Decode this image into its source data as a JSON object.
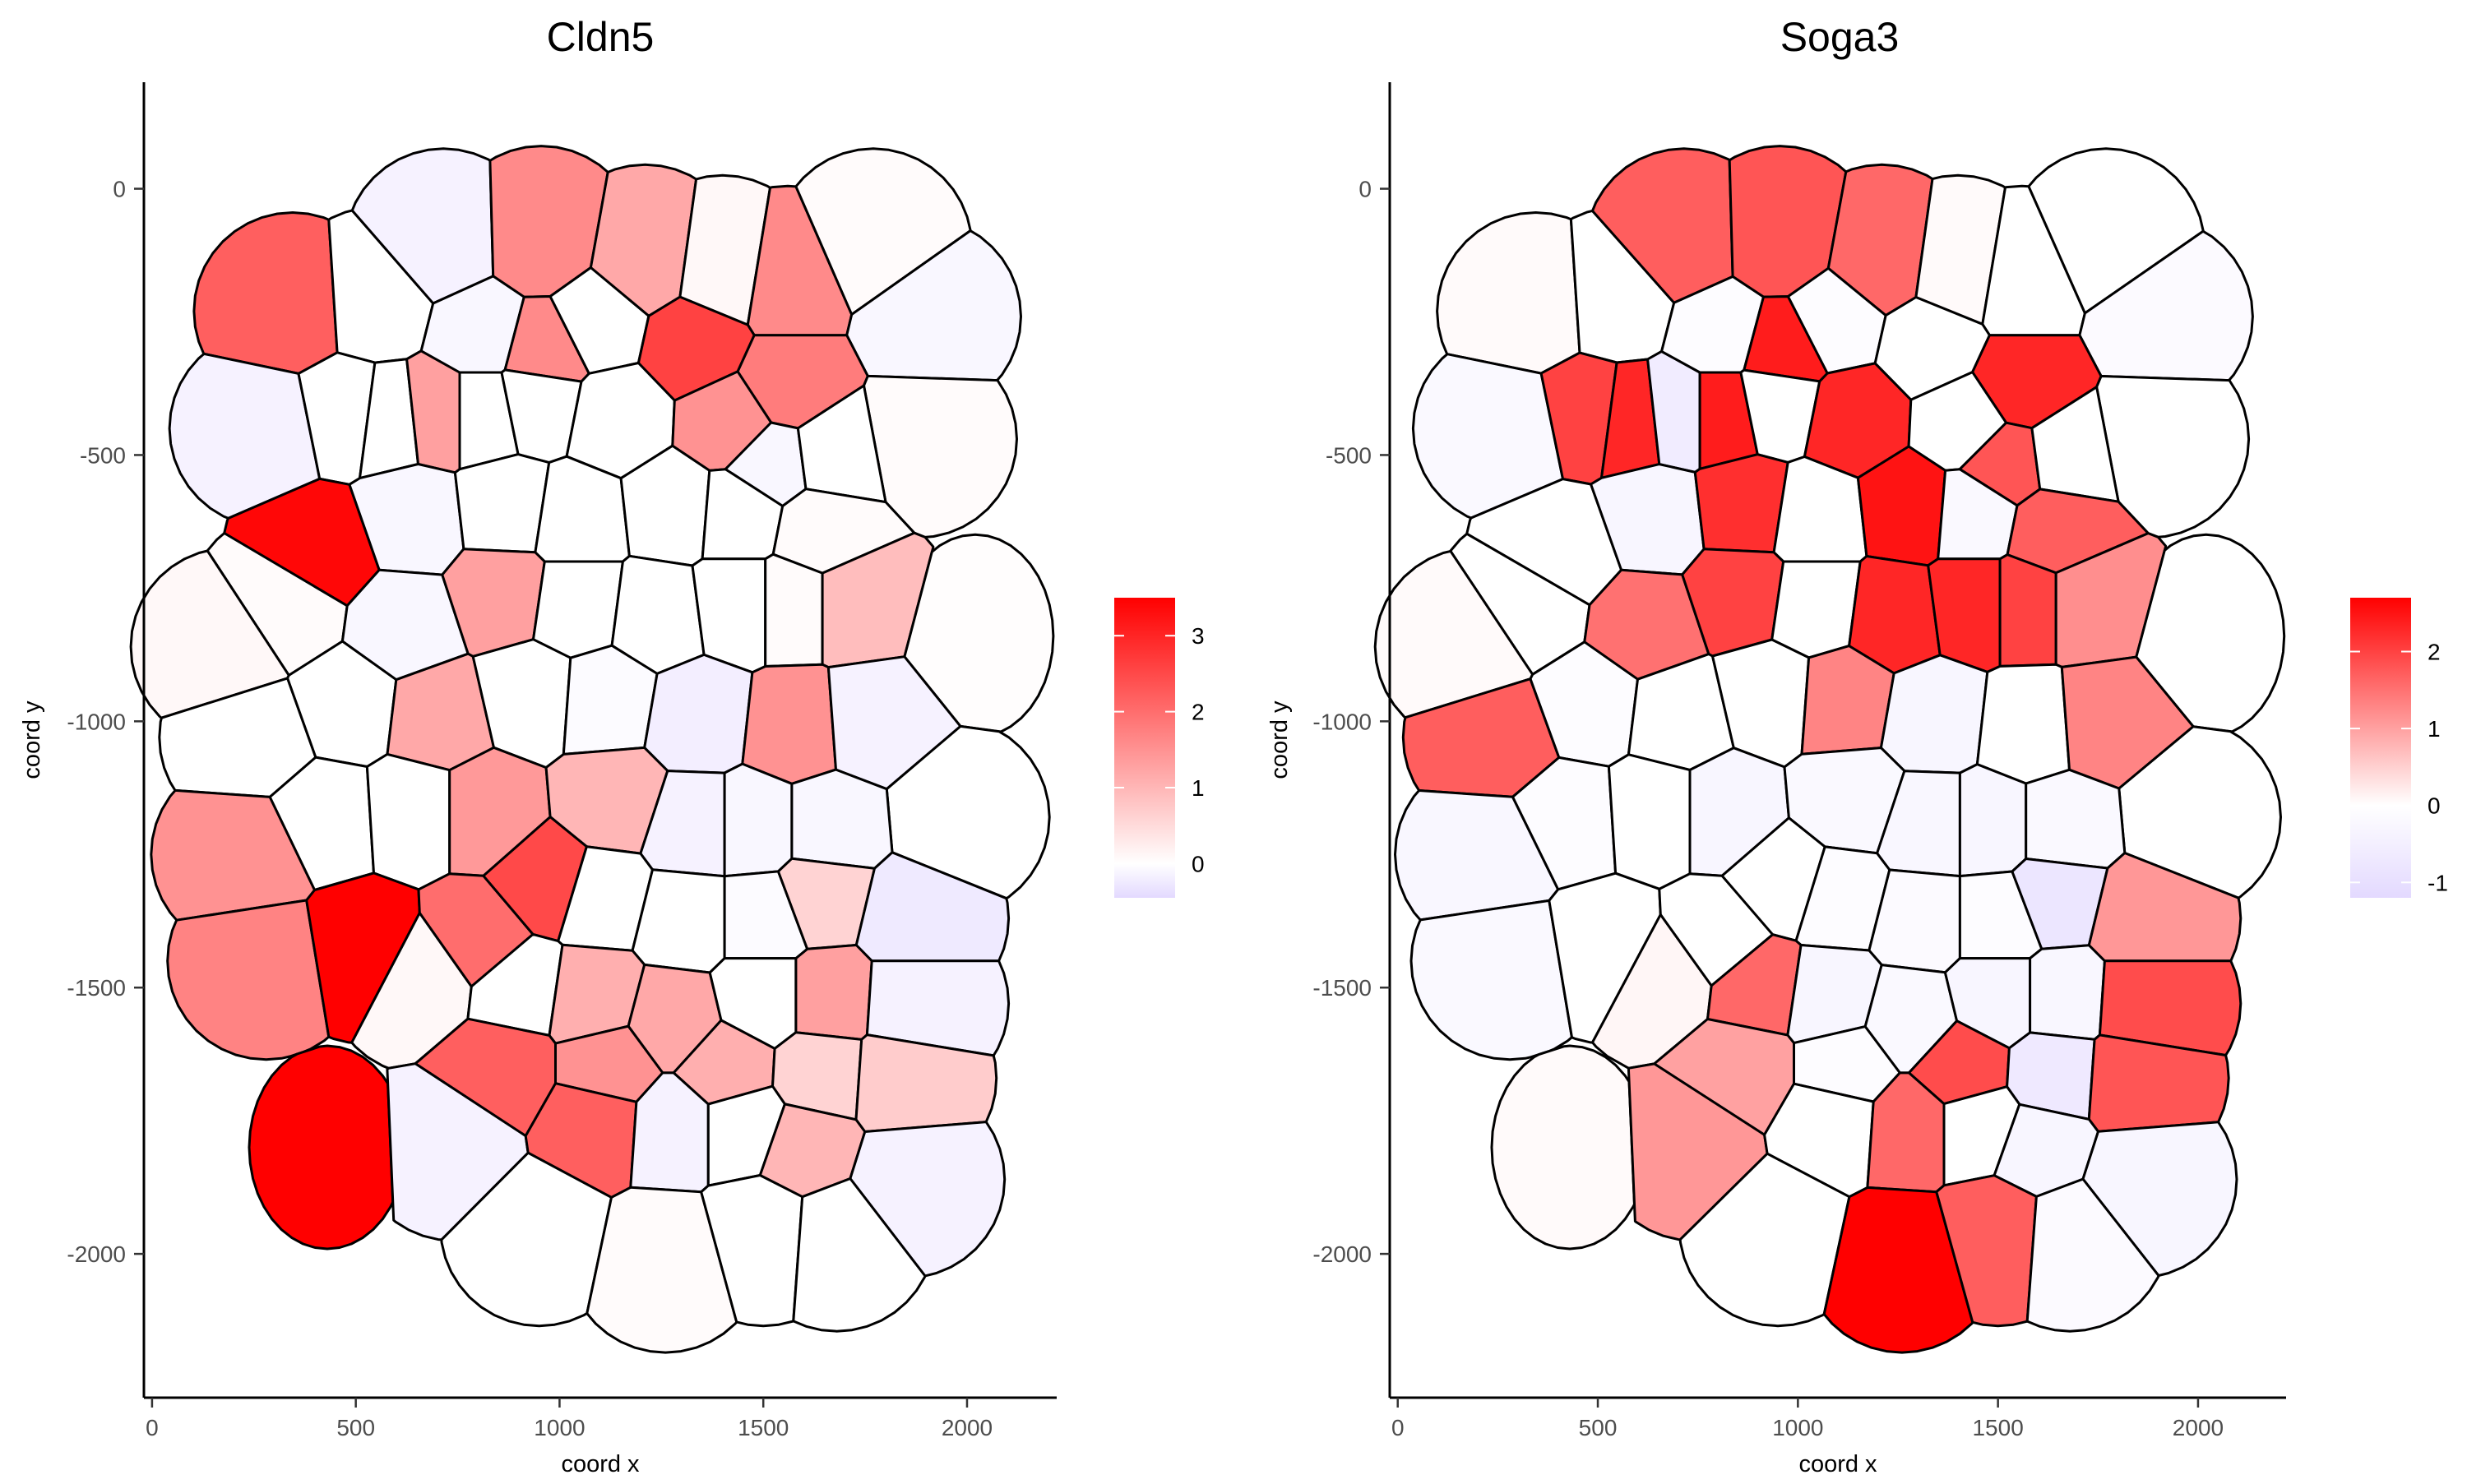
{
  "chart_data": [
    {
      "type": "heatmap",
      "subtype": "spatial-cell-polygons",
      "title": "Cldn5",
      "xlabel": "coord x",
      "ylabel": "coord y",
      "xlim": [
        -20,
        2220
      ],
      "ylim": [
        -2270,
        200
      ],
      "x_ticks": [
        0,
        500,
        1000,
        1500,
        2000
      ],
      "y_ticks": [
        0,
        -500,
        -1000,
        -1500,
        -2000
      ],
      "grid": false,
      "legend": {
        "position": "right",
        "scale": [
          -0.45,
          3.5
        ],
        "ticks": [
          0,
          1,
          2,
          3
        ],
        "low_color": "#e3d9ff",
        "mid_color": "#ffffff",
        "high_color": "#ff0000"
      },
      "cells": [
        {
          "x": 345,
          "y": -230,
          "value": 2.2
        },
        {
          "x": 550,
          "y": -220,
          "value": 0
        },
        {
          "x": 715,
          "y": -110,
          "value": -0.15
        },
        {
          "x": 955,
          "y": -105,
          "value": 1.6
        },
        {
          "x": 1210,
          "y": -140,
          "value": 1.2
        },
        {
          "x": 1400,
          "y": -160,
          "value": 0.1
        },
        {
          "x": 1560,
          "y": -180,
          "value": 1.6
        },
        {
          "x": 1770,
          "y": -110,
          "value": 0.05
        },
        {
          "x": 1890,
          "y": -240,
          "value": -0.1
        },
        {
          "x": 285,
          "y": -450,
          "value": -0.15
        },
        {
          "x": 480,
          "y": -420,
          "value": 0
        },
        {
          "x": 580,
          "y": -430,
          "value": 0
        },
        {
          "x": 700,
          "y": -420,
          "value": 1.3
        },
        {
          "x": 810,
          "y": -270,
          "value": -0.1
        },
        {
          "x": 960,
          "y": -300,
          "value": 1.6
        },
        {
          "x": 1090,
          "y": -250,
          "value": 0
        },
        {
          "x": 1330,
          "y": -290,
          "value": 2.6
        },
        {
          "x": 1560,
          "y": -370,
          "value": 1.8
        },
        {
          "x": 1880,
          "y": -470,
          "value": 0.05
        },
        {
          "x": 810,
          "y": -420,
          "value": 0
        },
        {
          "x": 940,
          "y": -400,
          "value": 0
        },
        {
          "x": 1140,
          "y": -430,
          "value": 0
        },
        {
          "x": 1420,
          "y": -440,
          "value": 1.5
        },
        {
          "x": 1520,
          "y": -515,
          "value": -0.1
        },
        {
          "x": 1670,
          "y": -500,
          "value": 0
        },
        {
          "x": 415,
          "y": -680,
          "value": 3.4
        },
        {
          "x": 640,
          "y": -620,
          "value": -0.1
        },
        {
          "x": 870,
          "y": -600,
          "value": 0
        },
        {
          "x": 1040,
          "y": -620,
          "value": 0
        },
        {
          "x": 1280,
          "y": -600,
          "value": 0
        },
        {
          "x": 1440,
          "y": -610,
          "value": 0
        },
        {
          "x": 1640,
          "y": -640,
          "value": 0.05
        },
        {
          "x": 330,
          "y": -790,
          "value": 0.05
        },
        {
          "x": 190,
          "y": -860,
          "value": 0.1
        },
        {
          "x": 620,
          "y": -820,
          "value": -0.1
        },
        {
          "x": 860,
          "y": -760,
          "value": 1.3
        },
        {
          "x": 1040,
          "y": -780,
          "value": 0
        },
        {
          "x": 1240,
          "y": -800,
          "value": 0
        },
        {
          "x": 1440,
          "y": -780,
          "value": 0
        },
        {
          "x": 1570,
          "y": -780,
          "value": 0.05
        },
        {
          "x": 1720,
          "y": -780,
          "value": 0.9
        },
        {
          "x": 2020,
          "y": -840,
          "value": 0.03
        },
        {
          "x": 260,
          "y": -1030,
          "value": 0
        },
        {
          "x": 480,
          "y": -970,
          "value": 0
        },
        {
          "x": 700,
          "y": -990,
          "value": 1.2
        },
        {
          "x": 930,
          "y": -950,
          "value": 0
        },
        {
          "x": 1110,
          "y": -960,
          "value": -0.05
        },
        {
          "x": 1340,
          "y": -990,
          "value": -0.2
        },
        {
          "x": 1580,
          "y": -1010,
          "value": 1.5
        },
        {
          "x": 1760,
          "y": -1000,
          "value": -0.15
        },
        {
          "x": 1960,
          "y": -1180,
          "value": 0
        },
        {
          "x": 240,
          "y": -1250,
          "value": 1.5
        },
        {
          "x": 430,
          "y": -1180,
          "value": 0
        },
        {
          "x": 640,
          "y": -1170,
          "value": 0
        },
        {
          "x": 820,
          "y": -1170,
          "value": 1.4
        },
        {
          "x": 1130,
          "y": -1150,
          "value": 1.0
        },
        {
          "x": 1330,
          "y": -1200,
          "value": -0.15
        },
        {
          "x": 1480,
          "y": -1200,
          "value": -0.1
        },
        {
          "x": 1660,
          "y": -1200,
          "value": -0.1
        },
        {
          "x": 280,
          "y": -1450,
          "value": 1.7
        },
        {
          "x": 520,
          "y": -1420,
          "value": 3.5
        },
        {
          "x": 670,
          "y": -1480,
          "value": 0.1
        },
        {
          "x": 800,
          "y": -1410,
          "value": 2.0
        },
        {
          "x": 970,
          "y": -1300,
          "value": 2.5
        },
        {
          "x": 1100,
          "y": -1330,
          "value": 0
        },
        {
          "x": 1310,
          "y": -1370,
          "value": 0
        },
        {
          "x": 1500,
          "y": -1370,
          "value": -0.05
        },
        {
          "x": 1640,
          "y": -1330,
          "value": 0.6
        },
        {
          "x": 1860,
          "y": -1370,
          "value": -0.25
        },
        {
          "x": 900,
          "y": -1500,
          "value": 0
        },
        {
          "x": 1080,
          "y": -1520,
          "value": 1.1
        },
        {
          "x": 1280,
          "y": -1560,
          "value": 1.2
        },
        {
          "x": 1500,
          "y": -1520,
          "value": 0
        },
        {
          "x": 1660,
          "y": -1520,
          "value": 1.3
        },
        {
          "x": 1860,
          "y": -1530,
          "value": -0.15
        },
        {
          "x": 430,
          "y": -1800,
          "value": 3.5
        },
        {
          "x": 860,
          "y": -1650,
          "value": 2.2
        },
        {
          "x": 1120,
          "y": -1650,
          "value": 1.5
        },
        {
          "x": 1410,
          "y": -1650,
          "value": 1.1
        },
        {
          "x": 1640,
          "y": -1660,
          "value": 0.6
        },
        {
          "x": 1830,
          "y": -1670,
          "value": 0.7
        },
        {
          "x": 740,
          "y": -1790,
          "value": -0.15
        },
        {
          "x": 1090,
          "y": -1750,
          "value": 2.2
        },
        {
          "x": 1280,
          "y": -1760,
          "value": -0.15
        },
        {
          "x": 1450,
          "y": -1760,
          "value": 0
        },
        {
          "x": 1600,
          "y": -1800,
          "value": 1.0
        },
        {
          "x": 1850,
          "y": -1860,
          "value": -0.15
        },
        {
          "x": 950,
          "y": -1950,
          "value": 0
        },
        {
          "x": 1260,
          "y": -2000,
          "value": 0.05
        },
        {
          "x": 1500,
          "y": -1950,
          "value": 0
        },
        {
          "x": 1680,
          "y": -1960,
          "value": 0
        }
      ]
    },
    {
      "type": "heatmap",
      "subtype": "spatial-cell-polygons",
      "title": "Soga3",
      "xlabel": "coord x",
      "ylabel": "coord y",
      "xlim": [
        -20,
        2220
      ],
      "ylim": [
        -2270,
        200
      ],
      "x_ticks": [
        0,
        500,
        1000,
        1500,
        2000
      ],
      "y_ticks": [
        0,
        -500,
        -1000,
        -1500,
        -2000
      ],
      "grid": false,
      "legend": {
        "position": "right",
        "scale": [
          -1.2,
          2.7
        ],
        "ticks": [
          -1,
          0,
          1,
          2
        ],
        "low_color": "#e3d9ff",
        "mid_color": "#ffffff",
        "high_color": "#ff0000"
      },
      "cells": [
        {
          "x": 345,
          "y": -230,
          "value": 0.05
        },
        {
          "x": 550,
          "y": -220,
          "value": 0
        },
        {
          "x": 715,
          "y": -110,
          "value": 1.7
        },
        {
          "x": 955,
          "y": -105,
          "value": 1.8
        },
        {
          "x": 1210,
          "y": -140,
          "value": 1.6
        },
        {
          "x": 1400,
          "y": -160,
          "value": 0.05
        },
        {
          "x": 1560,
          "y": -180,
          "value": 0
        },
        {
          "x": 1770,
          "y": -110,
          "value": 0
        },
        {
          "x": 1890,
          "y": -240,
          "value": -0.15
        },
        {
          "x": 285,
          "y": -450,
          "value": -0.2
        },
        {
          "x": 480,
          "y": -420,
          "value": 2.0
        },
        {
          "x": 580,
          "y": -430,
          "value": 2.3
        },
        {
          "x": 700,
          "y": -420,
          "value": -0.6
        },
        {
          "x": 810,
          "y": -270,
          "value": -0.1
        },
        {
          "x": 960,
          "y": -300,
          "value": 2.4
        },
        {
          "x": 1090,
          "y": -250,
          "value": -0.1
        },
        {
          "x": 1330,
          "y": -290,
          "value": 0
        },
        {
          "x": 1560,
          "y": -370,
          "value": 2.3
        },
        {
          "x": 1880,
          "y": -470,
          "value": 0
        },
        {
          "x": 810,
          "y": -420,
          "value": 2.4
        },
        {
          "x": 940,
          "y": -400,
          "value": 0
        },
        {
          "x": 1140,
          "y": -430,
          "value": 2.3
        },
        {
          "x": 1420,
          "y": -440,
          "value": 0
        },
        {
          "x": 1520,
          "y": -515,
          "value": 1.8
        },
        {
          "x": 1670,
          "y": -500,
          "value": 0
        },
        {
          "x": 415,
          "y": -680,
          "value": 0
        },
        {
          "x": 640,
          "y": -620,
          "value": -0.3
        },
        {
          "x": 870,
          "y": -600,
          "value": 2.2
        },
        {
          "x": 1040,
          "y": -620,
          "value": 0
        },
        {
          "x": 1280,
          "y": -600,
          "value": 2.5
        },
        {
          "x": 1440,
          "y": -610,
          "value": -0.2
        },
        {
          "x": 1640,
          "y": -640,
          "value": 1.7
        },
        {
          "x": 330,
          "y": -790,
          "value": 0
        },
        {
          "x": 190,
          "y": -860,
          "value": 0.05
        },
        {
          "x": 620,
          "y": -820,
          "value": 1.5
        },
        {
          "x": 860,
          "y": -760,
          "value": 2.0
        },
        {
          "x": 1040,
          "y": -780,
          "value": 0
        },
        {
          "x": 1240,
          "y": -800,
          "value": 2.3
        },
        {
          "x": 1440,
          "y": -780,
          "value": 2.3
        },
        {
          "x": 1570,
          "y": -780,
          "value": 2.0
        },
        {
          "x": 1720,
          "y": -780,
          "value": 1.2
        },
        {
          "x": 2020,
          "y": -840,
          "value": 0
        },
        {
          "x": 260,
          "y": -1030,
          "value": 1.7
        },
        {
          "x": 480,
          "y": -970,
          "value": -0.1
        },
        {
          "x": 700,
          "y": -990,
          "value": 0
        },
        {
          "x": 930,
          "y": -950,
          "value": 0
        },
        {
          "x": 1110,
          "y": -960,
          "value": 1.3
        },
        {
          "x": 1340,
          "y": -990,
          "value": -0.3
        },
        {
          "x": 1580,
          "y": -1010,
          "value": 0
        },
        {
          "x": 1760,
          "y": -1000,
          "value": 1.3
        },
        {
          "x": 1960,
          "y": -1180,
          "value": 0
        },
        {
          "x": 240,
          "y": -1250,
          "value": -0.25
        },
        {
          "x": 430,
          "y": -1180,
          "value": -0.1
        },
        {
          "x": 640,
          "y": -1170,
          "value": 0
        },
        {
          "x": 820,
          "y": -1170,
          "value": -0.3
        },
        {
          "x": 1130,
          "y": -1150,
          "value": -0.2
        },
        {
          "x": 1330,
          "y": -1200,
          "value": -0.25
        },
        {
          "x": 1480,
          "y": -1200,
          "value": -0.3
        },
        {
          "x": 1660,
          "y": -1200,
          "value": -0.2
        },
        {
          "x": 280,
          "y": -1450,
          "value": -0.2
        },
        {
          "x": 520,
          "y": -1420,
          "value": 0
        },
        {
          "x": 670,
          "y": -1480,
          "value": 0.1
        },
        {
          "x": 800,
          "y": -1410,
          "value": 0
        },
        {
          "x": 970,
          "y": -1300,
          "value": 0
        },
        {
          "x": 1100,
          "y": -1330,
          "value": -0.1
        },
        {
          "x": 1310,
          "y": -1370,
          "value": -0.15
        },
        {
          "x": 1500,
          "y": -1370,
          "value": -0.1
        },
        {
          "x": 1640,
          "y": -1330,
          "value": -0.8
        },
        {
          "x": 1860,
          "y": -1370,
          "value": 1.1
        },
        {
          "x": 900,
          "y": -1500,
          "value": 1.6
        },
        {
          "x": 1080,
          "y": -1520,
          "value": -0.3
        },
        {
          "x": 1280,
          "y": -1560,
          "value": -0.2
        },
        {
          "x": 1500,
          "y": -1520,
          "value": -0.3
        },
        {
          "x": 1660,
          "y": -1520,
          "value": -0.25
        },
        {
          "x": 1860,
          "y": -1530,
          "value": 1.9
        },
        {
          "x": 430,
          "y": -1800,
          "value": 0.05
        },
        {
          "x": 860,
          "y": -1650,
          "value": 1.0
        },
        {
          "x": 1120,
          "y": -1650,
          "value": -0.1
        },
        {
          "x": 1410,
          "y": -1650,
          "value": 1.9
        },
        {
          "x": 1640,
          "y": -1660,
          "value": -0.7
        },
        {
          "x": 1830,
          "y": -1670,
          "value": 1.8
        },
        {
          "x": 740,
          "y": -1790,
          "value": 1.1
        },
        {
          "x": 1090,
          "y": -1750,
          "value": 0
        },
        {
          "x": 1280,
          "y": -1760,
          "value": 1.6
        },
        {
          "x": 1450,
          "y": -1760,
          "value": 0
        },
        {
          "x": 1600,
          "y": -1800,
          "value": -0.3
        },
        {
          "x": 1850,
          "y": -1860,
          "value": -0.3
        },
        {
          "x": 950,
          "y": -1950,
          "value": 0
        },
        {
          "x": 1260,
          "y": -2000,
          "value": 2.7
        },
        {
          "x": 1500,
          "y": -1950,
          "value": 1.7
        },
        {
          "x": 1680,
          "y": -1960,
          "value": -0.15
        }
      ]
    }
  ]
}
